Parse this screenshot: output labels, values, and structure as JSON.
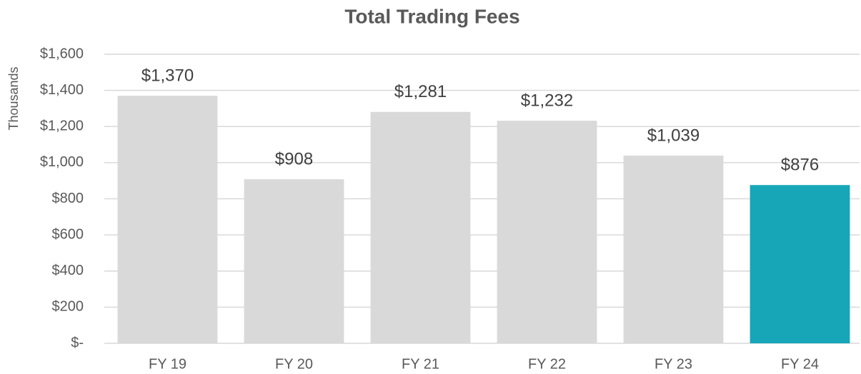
{
  "chart_data": {
    "type": "bar",
    "title": "Total Trading Fees",
    "y_label": "Thousands",
    "categories": [
      "FY 19",
      "FY 20",
      "FY 21",
      "FY 22",
      "FY 23",
      "FY 24"
    ],
    "values": [
      1370,
      908,
      1281,
      1232,
      1039,
      876
    ],
    "value_labels": [
      "$1,370",
      "$908",
      "$1,281",
      "$1,232",
      "$1,039",
      "$876"
    ],
    "colors": [
      "#d9d9d9",
      "#d9d9d9",
      "#d9d9d9",
      "#d9d9d9",
      "#d9d9d9",
      "#17a6b8"
    ],
    "ylim": [
      0,
      1600
    ],
    "yticks": [
      {
        "value": 0,
        "label": "$-"
      },
      {
        "value": 200,
        "label": "$200"
      },
      {
        "value": 400,
        "label": "$400"
      },
      {
        "value": 600,
        "label": "$600"
      },
      {
        "value": 800,
        "label": "$800"
      },
      {
        "value": 1000,
        "label": "$1,000"
      },
      {
        "value": 1200,
        "label": "$1,200"
      },
      {
        "value": 1400,
        "label": "$1,400"
      },
      {
        "value": 1600,
        "label": "$1,600"
      }
    ],
    "grid": true
  }
}
